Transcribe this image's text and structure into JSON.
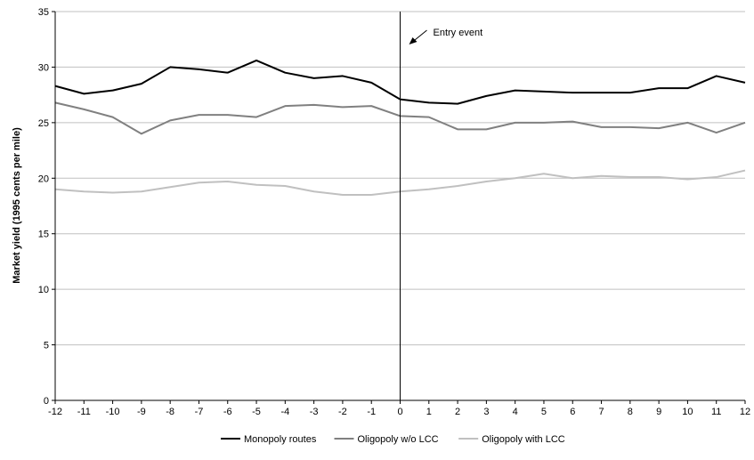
{
  "chart_data": {
    "type": "line",
    "title": "",
    "xlabel": "",
    "ylabel": "Market yield (1995 cents per mile)",
    "x": [
      -12,
      -11,
      -10,
      -9,
      -8,
      -7,
      -6,
      -5,
      -4,
      -3,
      -2,
      -1,
      0,
      1,
      2,
      3,
      4,
      5,
      6,
      7,
      8,
      9,
      10,
      11,
      12
    ],
    "xlim": [
      -12,
      12
    ],
    "ylim": [
      0,
      35
    ],
    "yticks": [
      0,
      5,
      10,
      15,
      20,
      25,
      30,
      35
    ],
    "grid": "horizontal",
    "legend_position": "bottom",
    "series": [
      {
        "name": "Monopoly routes",
        "color": "#000000",
        "values": [
          28.3,
          27.6,
          27.9,
          28.5,
          30.0,
          29.8,
          29.5,
          30.6,
          29.5,
          29.0,
          29.2,
          28.6,
          27.1,
          26.8,
          26.7,
          27.4,
          27.9,
          27.8,
          27.7,
          27.7,
          27.7,
          28.1,
          28.1,
          29.2,
          28.6
        ]
      },
      {
        "name": "Oligopoly w/o LCC",
        "color": "#808080",
        "values": [
          26.8,
          26.2,
          25.5,
          24.0,
          25.2,
          25.7,
          25.7,
          25.5,
          26.5,
          26.6,
          26.4,
          26.5,
          25.6,
          25.5,
          24.4,
          24.4,
          25.0,
          25.0,
          25.1,
          24.6,
          24.6,
          24.5,
          25.0,
          24.1,
          25.0
        ]
      },
      {
        "name": "Oligopoly with LCC",
        "color": "#c0c0c0",
        "values": [
          19.0,
          18.8,
          18.7,
          18.8,
          19.2,
          19.6,
          19.7,
          19.4,
          19.3,
          18.8,
          18.5,
          18.5,
          18.8,
          19.0,
          19.3,
          19.7,
          20.0,
          20.4,
          20.0,
          20.2,
          20.1,
          20.1,
          19.9,
          20.1,
          20.7
        ]
      }
    ],
    "annotation": {
      "text": "Entry event",
      "x": 0
    }
  },
  "colors": {
    "gridline": "#c0c0c0",
    "axis": "#000000",
    "event_line": "#000000"
  }
}
